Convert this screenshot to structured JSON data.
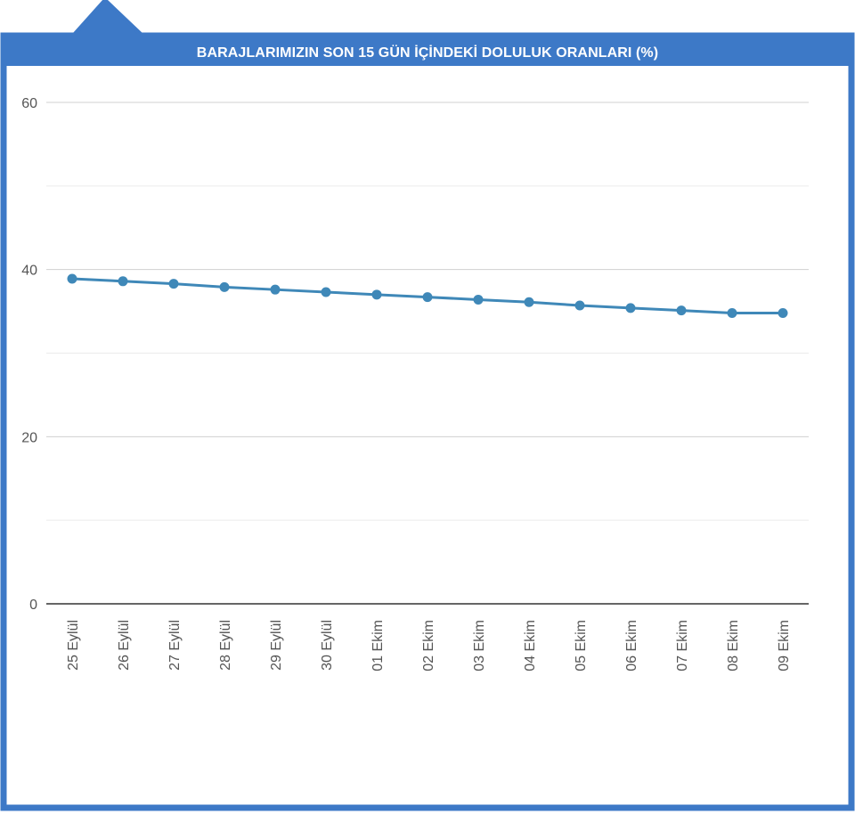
{
  "colors": {
    "frame": "#3d79c7",
    "line": "#3f88b8",
    "grid": "#d0d0d0",
    "minor_grid": "#ebebeb",
    "axis": "#333333",
    "tick_text": "#555555"
  },
  "chart_data": {
    "type": "line",
    "title": "BARAJLARIMIZIN SON 15 GÜN İÇİNDEKİ DOLULUK ORANLARI (%)",
    "categories": [
      "25 Eylül",
      "26 Eylül",
      "27 Eylül",
      "28 Eylül",
      "29 Eylül",
      "30 Eylül",
      "01 Ekim",
      "02 Ekim",
      "03 Ekim",
      "04 Ekim",
      "05 Ekim",
      "06 Ekim",
      "07 Ekim",
      "08 Ekim",
      "09 Ekim"
    ],
    "values": [
      38.9,
      38.6,
      38.3,
      37.9,
      37.6,
      37.3,
      37.0,
      36.7,
      36.4,
      36.1,
      35.7,
      35.4,
      35.1,
      34.8,
      34.8
    ],
    "yticks": [
      0,
      20,
      40,
      60
    ],
    "ylim": [
      0,
      60
    ],
    "grid": true,
    "legend": "none"
  }
}
